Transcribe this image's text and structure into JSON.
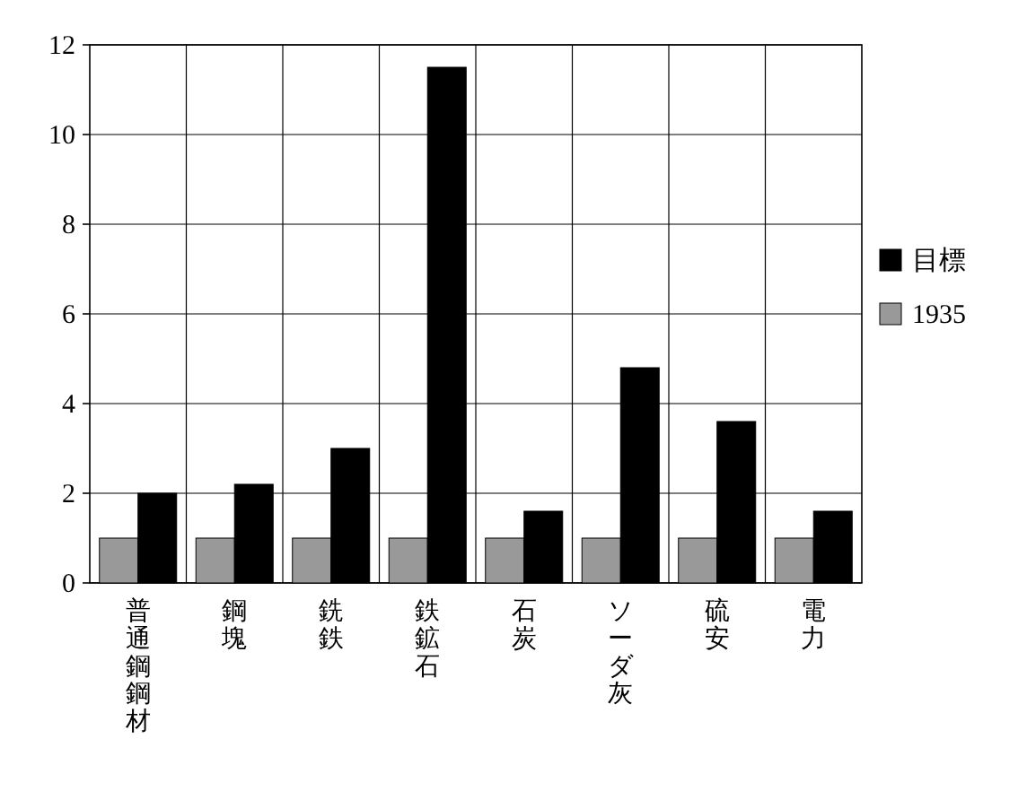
{
  "chart_data": {
    "type": "bar",
    "categories": [
      "普通鋼鋼材",
      "鋼塊",
      "銑鉄",
      "鉄鉱石",
      "石炭",
      "ソーダ灰",
      "硫安",
      "電力"
    ],
    "series": [
      {
        "name": "1935",
        "color": "#999999",
        "values": [
          1,
          1,
          1,
          1,
          1,
          1,
          1,
          1
        ]
      },
      {
        "name": "目標",
        "color": "#000000",
        "values": [
          2.0,
          2.2,
          3.0,
          11.5,
          1.6,
          4.8,
          3.6,
          1.6
        ]
      }
    ],
    "ylim": [
      0,
      12
    ],
    "yticks": [
      0,
      2,
      4,
      6,
      8,
      10,
      12
    ],
    "grid": true,
    "legend": "right"
  }
}
